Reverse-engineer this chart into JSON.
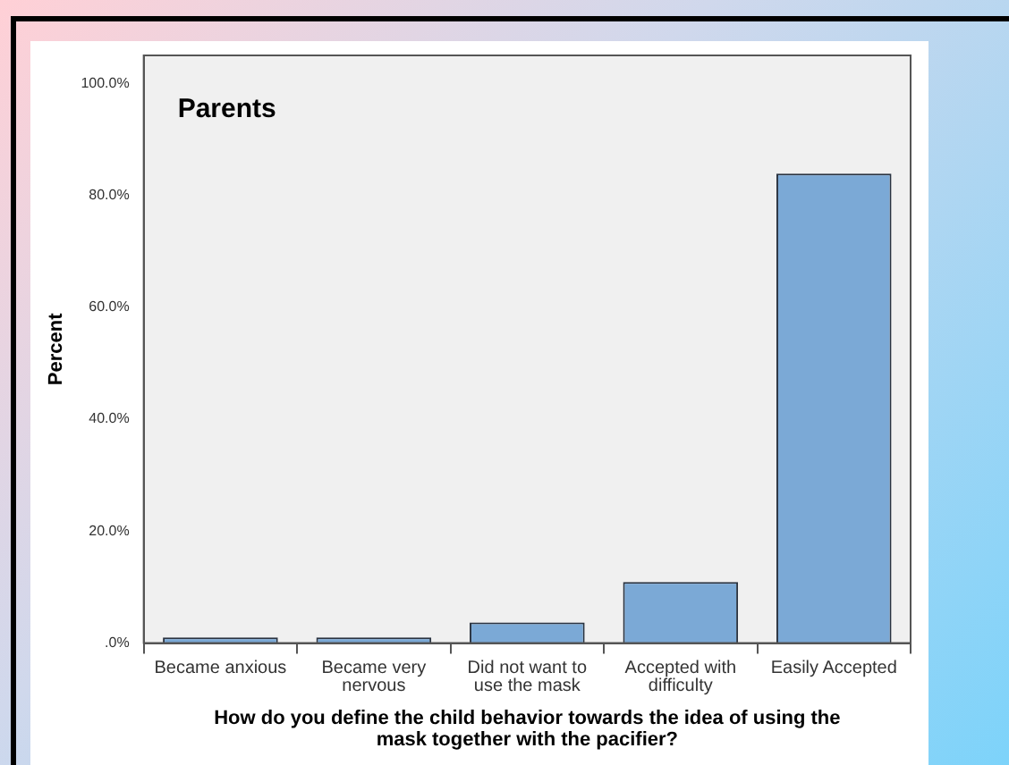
{
  "chart_data": {
    "type": "bar",
    "title": "Parents",
    "xlabel": "How do you define the child behavior towards the idea of using the mask together with the pacifier?",
    "ylabel": "Percent",
    "categories": [
      "Became anxious",
      "Became very nervous",
      "Did not want to use the mask",
      "Accepted with difficulty",
      "Easily Accepted"
    ],
    "values": [
      1.0,
      1.0,
      3.7,
      10.9,
      83.9
    ],
    "color": "#7ba9d6",
    "ylim": [
      0,
      105
    ],
    "yticks": [
      {
        "value": 0,
        "label": ".0%"
      },
      {
        "value": 20,
        "label": "20.0%"
      },
      {
        "value": 40,
        "label": "40.0%"
      },
      {
        "value": 60,
        "label": "60.0%"
      },
      {
        "value": 80,
        "label": "80.0%"
      },
      {
        "value": 100,
        "label": "100.0%"
      }
    ],
    "grid": false,
    "legend": false
  }
}
